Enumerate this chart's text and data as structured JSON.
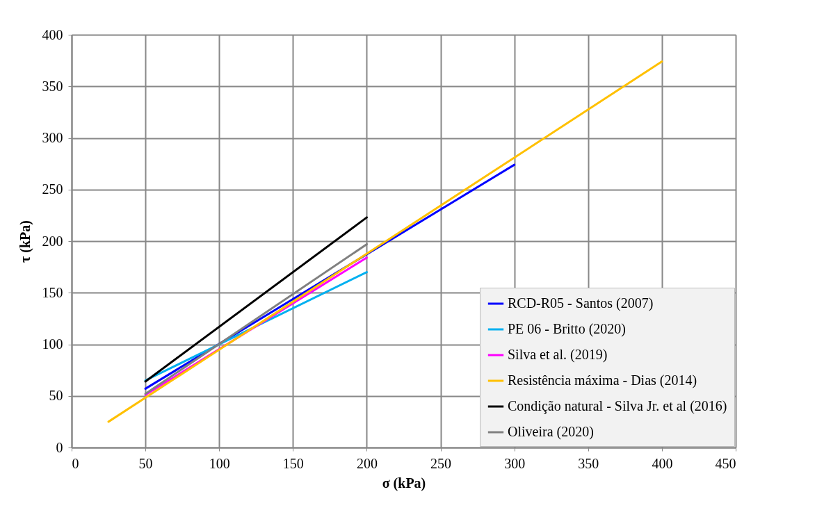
{
  "chart_data": {
    "type": "line",
    "xlabel": "σ (kPa)",
    "ylabel": "τ (kPa)",
    "xlim": [
      0,
      450
    ],
    "xticks": [
      0,
      50,
      100,
      150,
      200,
      250,
      300,
      350,
      400,
      450
    ],
    "ylim": [
      0,
      400
    ],
    "yticks": [
      0,
      50,
      100,
      150,
      200,
      250,
      300,
      350,
      400
    ],
    "grid": true,
    "legend": "bottom right",
    "marker": "none",
    "line_style": "solid",
    "series": [
      {
        "name": "RCD-R05 - Santos (2007)",
        "color": "#0000ff",
        "x": [
          50,
          300
        ],
        "values": [
          57,
          274
        ]
      },
      {
        "name": "PE 06 - Britto (2020)",
        "color": "#00b0f0",
        "x": [
          50,
          200
        ],
        "values": [
          65,
          170
        ]
      },
      {
        "name": "Silva et al. (2019)",
        "color": "#ff00ff",
        "x": [
          50,
          200
        ],
        "values": [
          51,
          184
        ]
      },
      {
        "name": "Resistência máxima - Dias (2014)",
        "color": "#ffc000",
        "x": [
          25,
          400
        ],
        "values": [
          25,
          374
        ]
      },
      {
        "name": "Condição natural - Silva Jr. et al (2016)",
        "color": "#000000",
        "x": [
          50,
          200
        ],
        "values": [
          64,
          223
        ]
      },
      {
        "name": "Oliveira (2020)",
        "color": "#808080",
        "x": [
          50,
          200
        ],
        "values": [
          52,
          197
        ]
      }
    ]
  }
}
